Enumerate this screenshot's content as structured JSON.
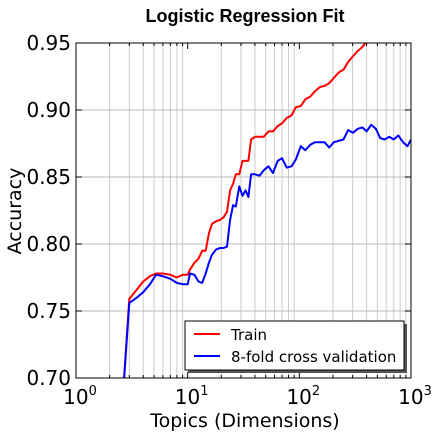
{
  "chart_data": {
    "type": "line",
    "title": "Logistic Regression Fit",
    "xlabel": "Topics (Dimensions)",
    "ylabel": "Accuracy",
    "xscale": "log",
    "xlim": [
      1,
      1000
    ],
    "ylim": [
      0.7,
      0.95
    ],
    "grid": true,
    "legend_position": "lower-right",
    "x_ticks": [
      {
        "base": "10",
        "exp": "0"
      },
      {
        "base": "10",
        "exp": "1"
      },
      {
        "base": "10",
        "exp": "2"
      },
      {
        "base": "10",
        "exp": "3"
      }
    ],
    "y_ticks": [
      "0.70",
      "0.75",
      "0.80",
      "0.85",
      "0.90",
      "0.95"
    ],
    "series": [
      {
        "name": "Train",
        "color": "#ff0000",
        "points": [
          [
            2.6,
            0.68
          ],
          [
            3.0,
            0.759
          ],
          [
            3.5,
            0.766
          ],
          [
            4.0,
            0.772
          ],
          [
            4.6,
            0.776
          ],
          [
            5.2,
            0.778
          ],
          [
            6.0,
            0.778
          ],
          [
            7.0,
            0.777
          ],
          [
            8.0,
            0.775
          ],
          [
            9.0,
            0.777
          ],
          [
            10.0,
            0.777
          ],
          [
            10.5,
            0.781
          ],
          [
            11.5,
            0.786
          ],
          [
            12.5,
            0.789
          ],
          [
            13.5,
            0.795
          ],
          [
            14.5,
            0.795
          ],
          [
            15.5,
            0.808
          ],
          [
            16.5,
            0.815
          ],
          [
            18.0,
            0.817
          ],
          [
            19.5,
            0.818
          ],
          [
            21.0,
            0.82
          ],
          [
            22.5,
            0.824
          ],
          [
            24.0,
            0.84
          ],
          [
            25.5,
            0.845
          ],
          [
            27.0,
            0.852
          ],
          [
            29.0,
            0.852
          ],
          [
            31.0,
            0.862
          ],
          [
            33.0,
            0.862
          ],
          [
            35.0,
            0.862
          ],
          [
            37.0,
            0.878
          ],
          [
            40.0,
            0.88
          ],
          [
            44.0,
            0.88
          ],
          [
            48.0,
            0.88
          ],
          [
            53.0,
            0.884
          ],
          [
            58.0,
            0.884
          ],
          [
            64.0,
            0.888
          ],
          [
            70.0,
            0.89
          ],
          [
            77.0,
            0.894
          ],
          [
            85.0,
            0.896
          ],
          [
            93.0,
            0.902
          ],
          [
            103.0,
            0.903
          ],
          [
            113.0,
            0.908
          ],
          [
            125.0,
            0.91
          ],
          [
            138.0,
            0.914
          ],
          [
            152.0,
            0.917
          ],
          [
            168.0,
            0.918
          ],
          [
            185.0,
            0.92
          ],
          [
            204.0,
            0.924
          ],
          [
            225.0,
            0.928
          ],
          [
            248.0,
            0.93
          ],
          [
            274.0,
            0.936
          ],
          [
            302.0,
            0.94
          ],
          [
            333.0,
            0.944
          ],
          [
            367.0,
            0.947
          ],
          [
            390.0,
            0.95
          ],
          [
            405.0,
            0.955
          ]
        ]
      },
      {
        "name": "8-fold cross validation",
        "color": "#0000ff",
        "points": [
          [
            2.6,
            0.68
          ],
          [
            3.0,
            0.756
          ],
          [
            3.5,
            0.76
          ],
          [
            4.0,
            0.764
          ],
          [
            4.6,
            0.77
          ],
          [
            5.2,
            0.777
          ],
          [
            6.0,
            0.776
          ],
          [
            7.0,
            0.774
          ],
          [
            8.0,
            0.771
          ],
          [
            9.0,
            0.77
          ],
          [
            10.0,
            0.77
          ],
          [
            10.5,
            0.778
          ],
          [
            11.5,
            0.777
          ],
          [
            12.5,
            0.772
          ],
          [
            13.5,
            0.771
          ],
          [
            14.5,
            0.778
          ],
          [
            15.5,
            0.786
          ],
          [
            16.5,
            0.792
          ],
          [
            18.0,
            0.796
          ],
          [
            19.5,
            0.797
          ],
          [
            21.0,
            0.797
          ],
          [
            22.5,
            0.798
          ],
          [
            24.0,
            0.818
          ],
          [
            25.5,
            0.829
          ],
          [
            27.0,
            0.828
          ],
          [
            29.0,
            0.843
          ],
          [
            31.0,
            0.836
          ],
          [
            33.0,
            0.84
          ],
          [
            35.0,
            0.835
          ],
          [
            37.0,
            0.852
          ],
          [
            40.0,
            0.852
          ],
          [
            44.0,
            0.851
          ],
          [
            48.0,
            0.855
          ],
          [
            53.0,
            0.858
          ],
          [
            58.0,
            0.853
          ],
          [
            64.0,
            0.862
          ],
          [
            70.0,
            0.864
          ],
          [
            77.0,
            0.857
          ],
          [
            85.0,
            0.858
          ],
          [
            93.0,
            0.863
          ],
          [
            103.0,
            0.873
          ],
          [
            113.0,
            0.87
          ],
          [
            125.0,
            0.874
          ],
          [
            138.0,
            0.876
          ],
          [
            152.0,
            0.876
          ],
          [
            168.0,
            0.876
          ],
          [
            185.0,
            0.872
          ],
          [
            204.0,
            0.876
          ],
          [
            225.0,
            0.877
          ],
          [
            248.0,
            0.878
          ],
          [
            274.0,
            0.885
          ],
          [
            302.0,
            0.883
          ],
          [
            333.0,
            0.886
          ],
          [
            367.0,
            0.887
          ],
          [
            400.0,
            0.884
          ],
          [
            440.0,
            0.889
          ],
          [
            485.0,
            0.886
          ],
          [
            530.0,
            0.879
          ],
          [
            580.0,
            0.878
          ],
          [
            640.0,
            0.88
          ],
          [
            700.0,
            0.878
          ],
          [
            770.0,
            0.881
          ],
          [
            850.0,
            0.876
          ],
          [
            930.0,
            0.873
          ],
          [
            1000.0,
            0.878
          ]
        ]
      }
    ]
  }
}
